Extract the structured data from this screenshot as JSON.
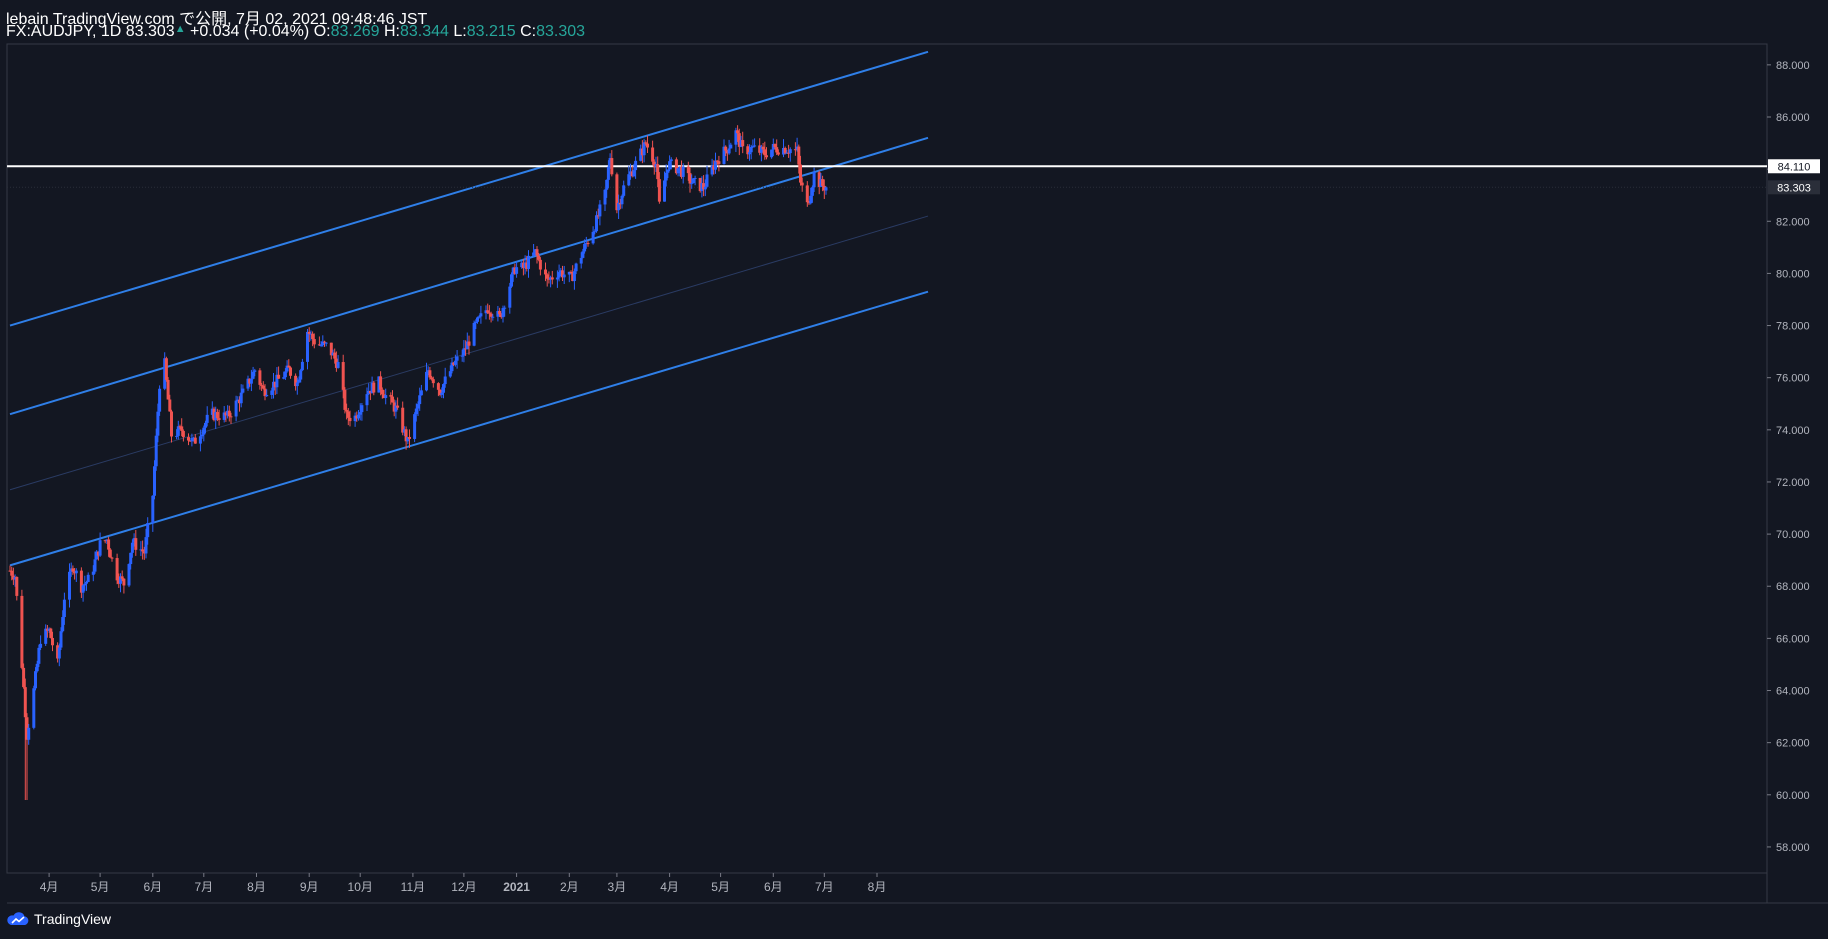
{
  "header": {
    "line1": "lebain TradingView.com で公開, 7月 02, 2021 09:48:46 JST",
    "symbol": "FX:AUDJPY, 1D 83.303",
    "change": "+0.034 (+0.04%)",
    "o_label": "O:",
    "o_value": "83.269",
    "h_label": "H:",
    "h_value": "83.344",
    "l_label": "L:",
    "l_value": "83.215",
    "c_label": "C:",
    "c_value": "83.303"
  },
  "footer": {
    "brand": "TradingView",
    "icon": "tradingview-cloud-icon"
  },
  "colors": {
    "background": "#131722",
    "up": "#2962ff",
    "down": "#ef5350",
    "channel": "#2f7fe8",
    "horizontal": "#ffffff",
    "accent": "#26a69a"
  },
  "chart_data": {
    "type": "candlestick",
    "symbol": "FX:AUDJPY",
    "interval": "1D",
    "ylim": [
      57,
      88.8
    ],
    "y_ticks": [
      "58.000",
      "60.000",
      "62.000",
      "64.000",
      "66.000",
      "68.000",
      "70.000",
      "72.000",
      "74.000",
      "76.000",
      "78.000",
      "80.000",
      "82.000",
      "84.000",
      "86.000",
      "88.000"
    ],
    "x_ticks": [
      {
        "label": "4月",
        "date": "2020-04-01"
      },
      {
        "label": "5月",
        "date": "2020-05-01"
      },
      {
        "label": "6月",
        "date": "2020-06-01"
      },
      {
        "label": "7月",
        "date": "2020-07-01"
      },
      {
        "label": "8月",
        "date": "2020-08-01"
      },
      {
        "label": "9月",
        "date": "2020-09-01"
      },
      {
        "label": "10月",
        "date": "2020-10-01"
      },
      {
        "label": "11月",
        "date": "2020-11-01"
      },
      {
        "label": "12月",
        "date": "2020-12-01"
      },
      {
        "label": "2021",
        "date": "2021-01-01"
      },
      {
        "label": "2月",
        "date": "2021-02-01"
      },
      {
        "label": "3月",
        "date": "2021-03-01"
      },
      {
        "label": "4月",
        "date": "2021-04-01"
      },
      {
        "label": "5月",
        "date": "2021-05-01"
      },
      {
        "label": "6月",
        "date": "2021-06-01"
      },
      {
        "label": "7月",
        "date": "2021-07-01"
      },
      {
        "label": "8月",
        "date": "2021-08-01"
      }
    ],
    "price_labels": {
      "horizontal_line": "84.110",
      "last_price": "83.303"
    },
    "horizontal_line": 84.11,
    "last_price": 83.303,
    "channel_lines": [
      {
        "name": "upper",
        "from": {
          "date": "2020-03-09",
          "price": 78.0
        },
        "to": {
          "date": "2021-08-31",
          "price": 88.5
        }
      },
      {
        "name": "middle",
        "from": {
          "date": "2020-03-09",
          "price": 74.6
        },
        "to": {
          "date": "2021-08-31",
          "price": 85.2
        }
      },
      {
        "name": "lower",
        "from": {
          "date": "2020-03-09",
          "price": 68.8
        },
        "to": {
          "date": "2021-08-31",
          "price": 79.3
        }
      }
    ],
    "midline": {
      "from": {
        "date": "2020-03-09",
        "price": 71.7
      },
      "to": {
        "date": "2021-08-31",
        "price": 82.2
      }
    },
    "anchors": [
      [
        "2020-03-09",
        68.6
      ],
      [
        "2020-03-12",
        68.4
      ],
      [
        "2020-03-16",
        65.0
      ],
      [
        "2020-03-19",
        62.3
      ],
      [
        "2020-03-23",
        64.0
      ],
      [
        "2020-03-27",
        66.0
      ],
      [
        "2020-04-01",
        66.3
      ],
      [
        "2020-04-06",
        65.0
      ],
      [
        "2020-04-10",
        67.6
      ],
      [
        "2020-04-15",
        68.8
      ],
      [
        "2020-04-20",
        68.0
      ],
      [
        "2020-04-25",
        68.3
      ],
      [
        "2020-05-01",
        69.6
      ],
      [
        "2020-05-05",
        69.8
      ],
      [
        "2020-05-10",
        68.5
      ],
      [
        "2020-05-15",
        68.1
      ],
      [
        "2020-05-20",
        69.7
      ],
      [
        "2020-05-27",
        69.3
      ],
      [
        "2020-06-01",
        71.5
      ],
      [
        "2020-06-05",
        75.8
      ],
      [
        "2020-06-08",
        76.5
      ],
      [
        "2020-06-12",
        73.8
      ],
      [
        "2020-06-18",
        74.0
      ],
      [
        "2020-06-25",
        73.5
      ],
      [
        "2020-07-05",
        74.6
      ],
      [
        "2020-07-15",
        74.5
      ],
      [
        "2020-07-25",
        75.5
      ],
      [
        "2020-07-31",
        76.3
      ],
      [
        "2020-08-05",
        75.5
      ],
      [
        "2020-08-12",
        75.8
      ],
      [
        "2020-08-20",
        76.3
      ],
      [
        "2020-08-25",
        75.8
      ],
      [
        "2020-08-31",
        77.8
      ],
      [
        "2020-09-05",
        77.3
      ],
      [
        "2020-09-12",
        77.2
      ],
      [
        "2020-09-18",
        76.5
      ],
      [
        "2020-09-23",
        74.5
      ],
      [
        "2020-09-28",
        74.5
      ],
      [
        "2020-10-05",
        75.5
      ],
      [
        "2020-10-12",
        75.8
      ],
      [
        "2020-10-16",
        75.3
      ],
      [
        "2020-10-22",
        74.8
      ],
      [
        "2020-10-29",
        73.5
      ],
      [
        "2020-11-05",
        75.2
      ],
      [
        "2020-11-10",
        76.3
      ],
      [
        "2020-11-17",
        75.5
      ],
      [
        "2020-11-25",
        76.5
      ],
      [
        "2020-12-01",
        77.0
      ],
      [
        "2020-12-08",
        78.0
      ],
      [
        "2020-12-15",
        78.7
      ],
      [
        "2020-12-22",
        78.3
      ],
      [
        "2020-12-31",
        80.2
      ],
      [
        "2021-01-05",
        80.2
      ],
      [
        "2021-01-12",
        80.8
      ],
      [
        "2021-01-19",
        79.7
      ],
      [
        "2021-01-26",
        80.1
      ],
      [
        "2021-02-02",
        79.8
      ],
      [
        "2021-02-10",
        81.0
      ],
      [
        "2021-02-17",
        82.0
      ],
      [
        "2021-02-22",
        83.0
      ],
      [
        "2021-02-25",
        84.5
      ],
      [
        "2021-03-01",
        82.5
      ],
      [
        "2021-03-06",
        83.5
      ],
      [
        "2021-03-12",
        84.2
      ],
      [
        "2021-03-18",
        85.0
      ],
      [
        "2021-03-24",
        84.2
      ],
      [
        "2021-03-26",
        82.6
      ],
      [
        "2021-03-31",
        84.2
      ],
      [
        "2021-04-07",
        84.0
      ],
      [
        "2021-04-14",
        83.5
      ],
      [
        "2021-04-21",
        83.3
      ],
      [
        "2021-04-28",
        84.3
      ],
      [
        "2021-05-05",
        84.8
      ],
      [
        "2021-05-10",
        85.4
      ],
      [
        "2021-05-14",
        84.7
      ],
      [
        "2021-05-20",
        84.8
      ],
      [
        "2021-05-27",
        84.6
      ],
      [
        "2021-06-01",
        84.8
      ],
      [
        "2021-06-08",
        84.8
      ],
      [
        "2021-06-15",
        84.7
      ],
      [
        "2021-06-17",
        83.5
      ],
      [
        "2021-06-21",
        82.6
      ],
      [
        "2021-06-25",
        83.8
      ],
      [
        "2021-06-29",
        83.4
      ],
      [
        "2021-07-02",
        83.3
      ]
    ]
  }
}
